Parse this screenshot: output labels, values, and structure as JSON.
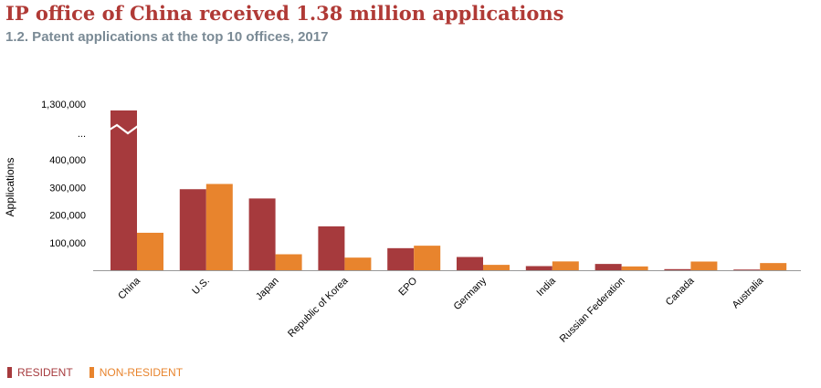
{
  "title": "IP office of China received 1.38 million applications",
  "subtitle": "1.2. Patent applications at the top 10 offices, 2017",
  "colors": {
    "resident": "#a63a3d",
    "non_resident": "#e8842d",
    "axis": "#999999",
    "title": "#b03a36",
    "subtitle": "#7a8a95"
  },
  "chart_data": {
    "type": "bar",
    "ylabel": "Applications",
    "xlabel": "",
    "ylim": [
      0,
      450000
    ],
    "axis_break": {
      "upper_tick": "1,300,000",
      "marker": "..."
    },
    "y_ticks": [
      {
        "value": 100000,
        "label": "100,000"
      },
      {
        "value": 200000,
        "label": "200,000"
      },
      {
        "value": 300000,
        "label": "300,000"
      },
      {
        "value": 400000,
        "label": "400,000"
      }
    ],
    "categories": [
      "China",
      "U.S.",
      "Japan",
      "Republic of Korea",
      "EPO",
      "Germany",
      "India",
      "Russian Federation",
      "Canada",
      "Australia"
    ],
    "series": [
      {
        "name": "RESIDENT",
        "values": [
          1245709,
          293904,
          260290,
          159084,
          80000,
          48000,
          14961,
          22777,
          4000,
          2500
        ]
      },
      {
        "name": "NON-RESIDENT",
        "values": [
          135885,
          312914,
          57888,
          45785,
          89000,
          19500,
          31942,
          13810,
          31500,
          26000
        ]
      }
    ],
    "legend": {
      "position": "bottom-left",
      "items": [
        "RESIDENT",
        "NON-RESIDENT"
      ]
    }
  }
}
